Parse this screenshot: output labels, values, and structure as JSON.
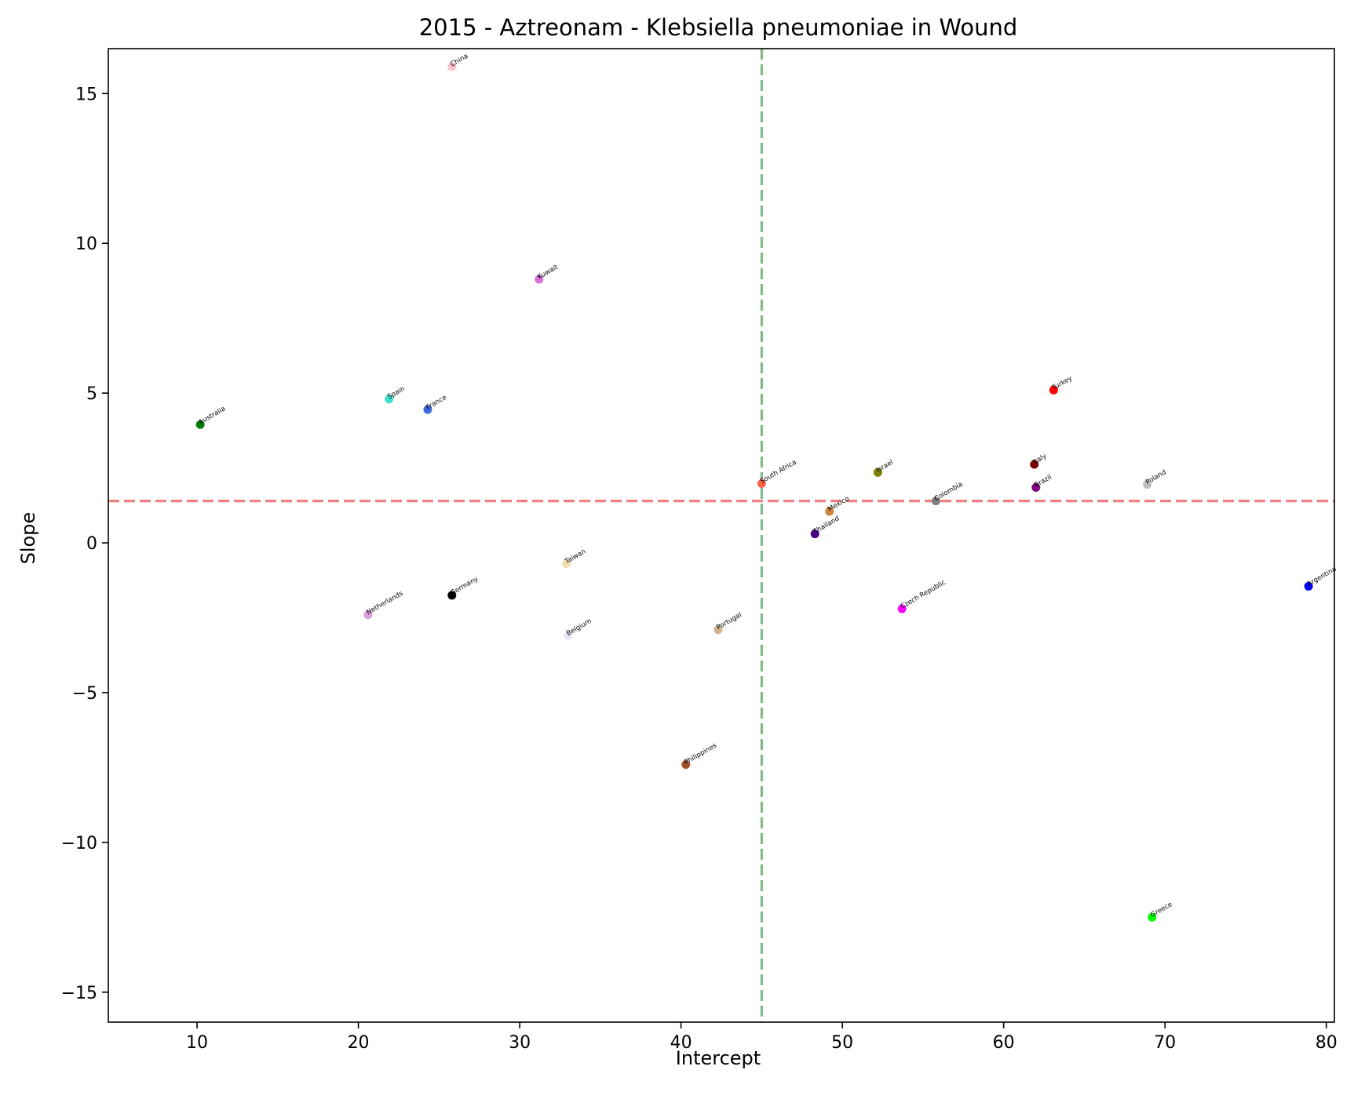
{
  "chart_data": {
    "type": "scatter",
    "title": "2015 - Aztreonam - Klebsiella pneumoniae in Wound",
    "xlabel": "Intercept",
    "ylabel": "Slope",
    "xlim": [
      4.5,
      80.5
    ],
    "ylim": [
      -16,
      16.5
    ],
    "xticks": [
      10,
      20,
      30,
      40,
      50,
      60,
      70,
      80
    ],
    "yticks": [
      -15,
      -10,
      -5,
      0,
      5,
      10,
      15
    ],
    "grid": false,
    "legend": "none",
    "reference_lines": [
      {
        "orientation": "vertical",
        "value": 45.0,
        "color": "#7fbf7f",
        "style": "dashed"
      },
      {
        "orientation": "horizontal",
        "value": 1.4,
        "color": "#f08080",
        "style": "dashed"
      }
    ],
    "points": [
      {
        "label": "China",
        "x": 25.8,
        "y": 15.9,
        "color": "#ffc0cb"
      },
      {
        "label": "Kuwait",
        "x": 31.2,
        "y": 8.8,
        "color": "#da70d6"
      },
      {
        "label": "Spain",
        "x": 21.9,
        "y": 4.8,
        "color": "#40e0d0"
      },
      {
        "label": "France",
        "x": 24.3,
        "y": 4.45,
        "color": "#4169e1"
      },
      {
        "label": "Australia",
        "x": 10.2,
        "y": 3.95,
        "color": "#008000"
      },
      {
        "label": "Turkey",
        "x": 63.1,
        "y": 5.1,
        "color": "#ff0000"
      },
      {
        "label": "South Africa",
        "x": 45.0,
        "y": 1.98,
        "color": "#ff6347"
      },
      {
        "label": "Israel",
        "x": 52.2,
        "y": 2.35,
        "color": "#808000"
      },
      {
        "label": "Italy",
        "x": 61.9,
        "y": 2.62,
        "color": "#800000"
      },
      {
        "label": "Brazil",
        "x": 62.0,
        "y": 1.85,
        "color": "#800080"
      },
      {
        "label": "Poland",
        "x": 68.9,
        "y": 1.95,
        "color": "#c0c0c0"
      },
      {
        "label": "Colombia",
        "x": 55.8,
        "y": 1.4,
        "color": "#808080"
      },
      {
        "label": "Mexico",
        "x": 49.2,
        "y": 1.05,
        "color": "#cd853f"
      },
      {
        "label": "Thailand",
        "x": 48.3,
        "y": 0.3,
        "color": "#4b0082"
      },
      {
        "label": "Taiwan",
        "x": 32.9,
        "y": -0.7,
        "color": "#f5deb3"
      },
      {
        "label": "Germany",
        "x": 25.8,
        "y": -1.75,
        "color": "#000000"
      },
      {
        "label": "Netherlands",
        "x": 20.6,
        "y": -2.4,
        "color": "#dda0dd"
      },
      {
        "label": "Belgium",
        "x": 33.0,
        "y": -3.1,
        "color": "#e6e6fa"
      },
      {
        "label": "Portugal",
        "x": 42.3,
        "y": -2.9,
        "color": "#d2b48c"
      },
      {
        "label": "Czech Republic",
        "x": 53.7,
        "y": -2.2,
        "color": "#ff00ff"
      },
      {
        "label": "Argentina",
        "x": 78.9,
        "y": -1.45,
        "color": "#0000ff"
      },
      {
        "label": "Philippines",
        "x": 40.3,
        "y": -7.4,
        "color": "#a0522d"
      },
      {
        "label": "Greece",
        "x": 69.2,
        "y": -12.5,
        "color": "#00ff00"
      }
    ]
  }
}
